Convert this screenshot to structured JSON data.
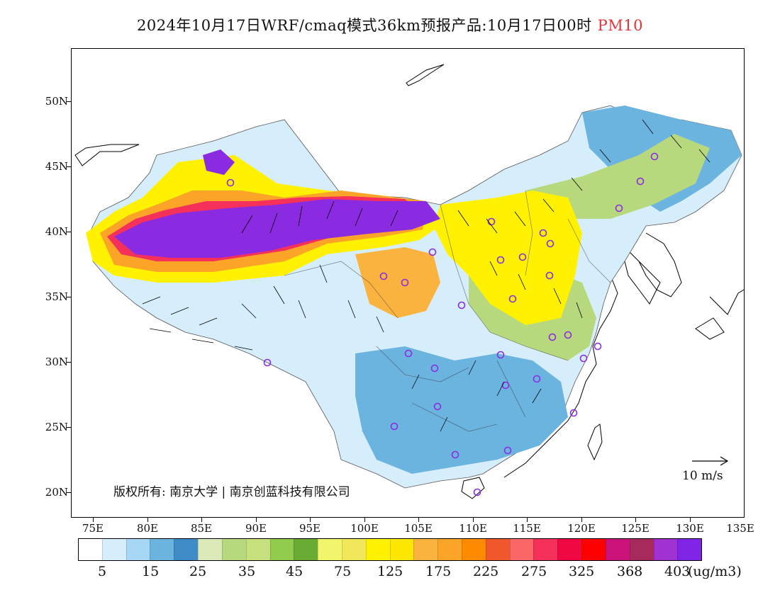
{
  "title": {
    "main": "2024年10月17日WRF/cmaq模式36km预报产品:10月17日00时",
    "pollutant": "PM10"
  },
  "lat_labels": [
    "50N",
    "45N",
    "40N",
    "35N",
    "30N",
    "25N",
    "20N"
  ],
  "lon_labels": [
    "75E",
    "80E",
    "85E",
    "90E",
    "95E",
    "100E",
    "105E",
    "110E",
    "115E",
    "120E",
    "125E",
    "130E",
    "135E"
  ],
  "copyright": "版权所有: 南京大学 | 南京创蓝科技有限公司",
  "wind_reference": "10 m/s",
  "legend": {
    "colors": [
      "#ffffff",
      "#d6eefb",
      "#a6d8f5",
      "#6cb4e0",
      "#3f8cc7",
      "#dce9b8",
      "#b8d87e",
      "#c5e07c",
      "#92cc4f",
      "#6aab35",
      "#f2f46b",
      "#f1e75a",
      "#fff100",
      "#fde700",
      "#fbb33f",
      "#fba428",
      "#fe8a00",
      "#f0572d",
      "#fb6766",
      "#f5305a",
      "#f00842",
      "#fe0000",
      "#cc137a",
      "#a62a5c",
      "#a032d4",
      "#8024e6"
    ],
    "labels": [
      "5",
      "15",
      "25",
      "35",
      "45",
      "75",
      "125",
      "175",
      "225",
      "275",
      "325",
      "368",
      "403"
    ],
    "unit": "(ug/m3)"
  },
  "map": {
    "colors": {
      "clean": "#d6eefb",
      "low": "#6cb4e0",
      "green": "#b8d87e",
      "yellow": "#fff100",
      "orange": "#fba428",
      "red": "#f5305a",
      "purple": "#8a2be2",
      "station": "#8b2be2"
    }
  }
}
